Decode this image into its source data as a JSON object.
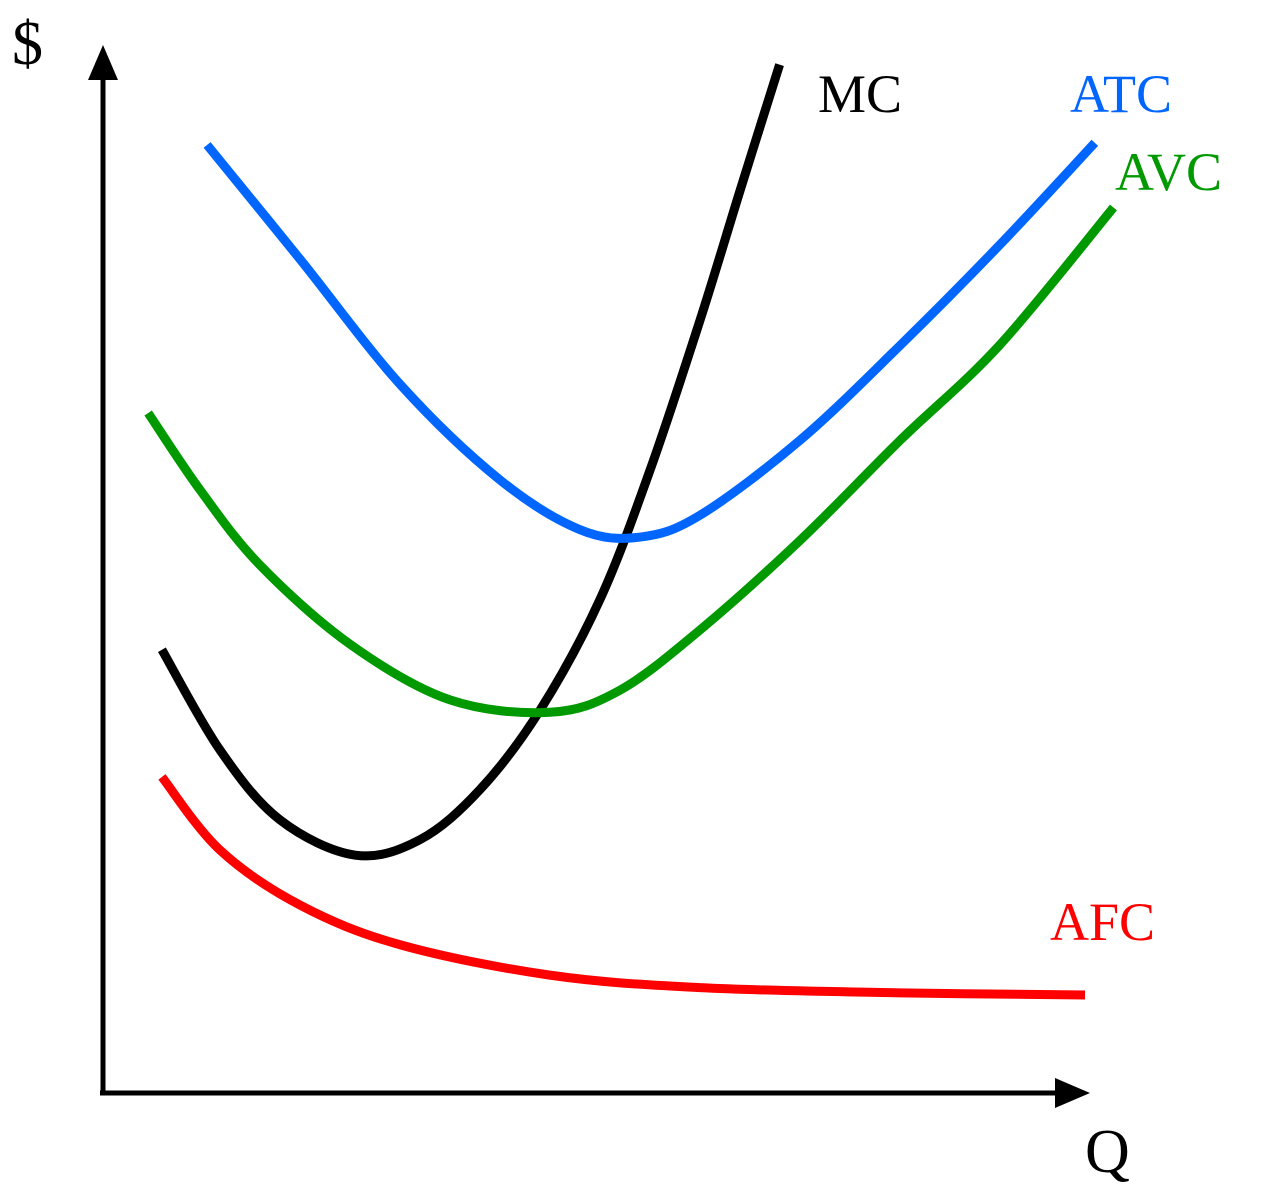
{
  "chart_data": {
    "type": "line",
    "x_label": "Q",
    "y_label": "$",
    "xlim": [
      0,
      100
    ],
    "ylim": [
      0,
      100
    ],
    "series": [
      {
        "name": "MC",
        "color": "#000000",
        "x": [
          6.0,
          11.9,
          18.0,
          25.7,
          32.3,
          38.4,
          44.5,
          50.6,
          55.7,
          60.8,
          64.9,
          68.9
        ],
        "values": [
          42.5,
          32.9,
          26.2,
          22.8,
          24.3,
          29.1,
          36.7,
          47.3,
          59.7,
          74.1,
          86.6,
          98.6
        ]
      },
      {
        "name": "ATC",
        "color": "#0066ff",
        "x": [
          10.6,
          20.1,
          30.3,
          40.4,
          48.6,
          54.7,
          60.8,
          71.0,
          81.2,
          91.3,
          101.0
        ],
        "values": [
          90.9,
          79.9,
          67.9,
          58.8,
          54.0,
          53.3,
          55.4,
          62.6,
          71.7,
          81.3,
          91.1
        ]
      },
      {
        "name": "AVC",
        "color": "#009900",
        "x": [
          4.6,
          9.9,
          16.0,
          25.2,
          35.3,
          45.5,
          52.6,
          60.8,
          71.0,
          81.2,
          91.3,
          102.9
        ],
        "values": [
          65.2,
          57.8,
          50.6,
          43.0,
          37.7,
          36.5,
          38.6,
          44.4,
          53.0,
          62.6,
          71.7,
          84.9
        ]
      },
      {
        "name": "AFC",
        "color": "#ff0000",
        "x": [
          6.0,
          11.9,
          20.1,
          30.3,
          45.5,
          60.8,
          81.2,
          100.0
        ],
        "values": [
          30.3,
          23.3,
          18.0,
          14.2,
          11.3,
          10.1,
          9.6,
          9.4
        ]
      }
    ]
  }
}
